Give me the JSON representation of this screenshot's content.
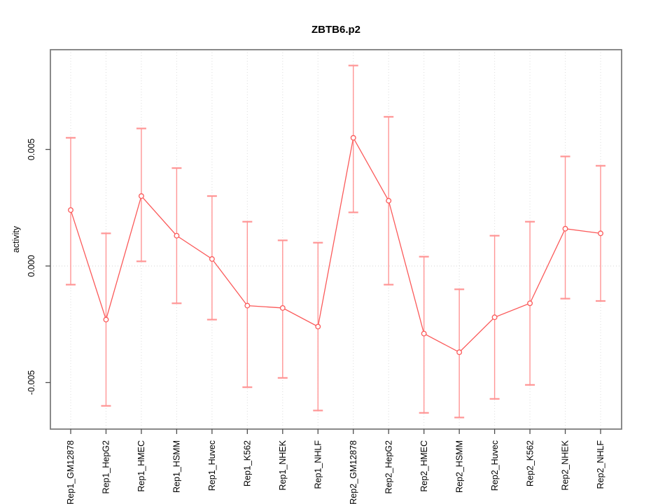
{
  "title": "ZBTB6.p2",
  "chart_data": {
    "type": "line",
    "title": "ZBTB6.p2",
    "xlabel": "",
    "ylabel": "activity",
    "categories": [
      "Rep1_GM12878",
      "Rep1_HepG2",
      "Rep1_HMEC",
      "Rep1_HSMM",
      "Rep1_Huvec",
      "Rep1_K562",
      "Rep1_NHEK",
      "Rep1_NHLF",
      "Rep2_GM12878",
      "Rep2_HepG2",
      "Rep2_HMEC",
      "Rep2_HSMM",
      "Rep2_Huvec",
      "Rep2_K562",
      "Rep2_NHEK",
      "Rep2_NHLF"
    ],
    "series": [
      {
        "name": "activity",
        "values": [
          0.0024,
          -0.0023,
          0.003,
          0.0013,
          0.0003,
          -0.0017,
          -0.0018,
          -0.0026,
          0.0055,
          0.0028,
          -0.0029,
          -0.0037,
          -0.0022,
          -0.0016,
          0.0016,
          0.0014
        ],
        "error_high": [
          0.0055,
          0.0014,
          0.0059,
          0.0042,
          0.003,
          0.0019,
          0.0011,
          0.001,
          0.0086,
          0.0064,
          0.0004,
          -0.001,
          0.0013,
          0.0019,
          0.0047,
          0.0043
        ],
        "error_low": [
          -0.0008,
          -0.006,
          0.0002,
          -0.0016,
          -0.0023,
          -0.0052,
          -0.0048,
          -0.0062,
          0.0023,
          -0.0008,
          -0.0063,
          -0.0065,
          -0.0057,
          -0.0051,
          -0.0014,
          -0.0015
        ]
      }
    ],
    "yticks": [
      -0.005,
      0,
      0.005
    ],
    "ytick_labels": [
      "-0.005",
      "0.000",
      "0.005"
    ],
    "ylim": [
      -0.00703,
      0.00928
    ],
    "grid": "vertical dotted gridline at each category; dotted horizontal line at y=0 only",
    "legend": "none",
    "marker": "open-circle",
    "colors": {
      "series": "#fb5a5a",
      "error_bar": "#ff9595",
      "grid": "#dcdcdc",
      "zero_line": "#d4d4d4",
      "frame": "#7d7d7d",
      "tick": "#4d4d4d",
      "text": "#000000",
      "background": "#ffffff"
    }
  }
}
